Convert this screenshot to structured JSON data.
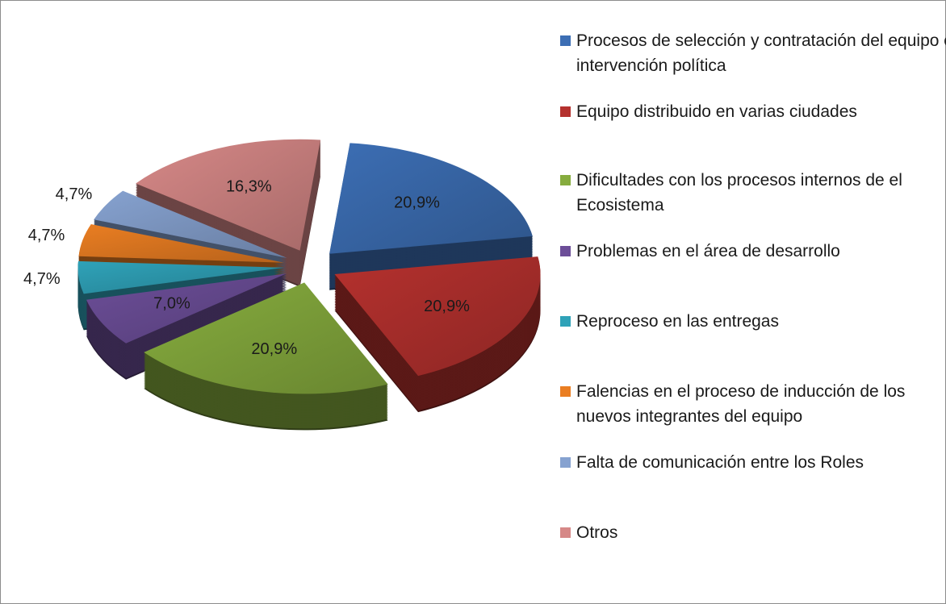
{
  "chart_data": {
    "type": "pie",
    "categories": [
      "Procesos de selección y contratación del equipo e intervención política",
      "Equipo distribuido en varias ciudades",
      "Dificultades con los procesos internos de el Ecosistema",
      "Problemas en el área de desarrollo",
      "Reproceso en las entregas",
      "Falencias en el proceso de inducción de los nuevos integrantes del equipo",
      "Falta de comunicación entre los Roles",
      "Otros"
    ],
    "values": [
      20.9,
      20.9,
      20.9,
      7.0,
      4.7,
      4.7,
      4.7,
      16.3
    ],
    "value_labels": [
      "20,9%",
      "20,9%",
      "20,9%",
      "7,0%",
      "4,7%",
      "4,7%",
      "4,7%",
      "16,3%"
    ],
    "colors": [
      "#3c6eb4",
      "#b5312e",
      "#86ac3e",
      "#6c4e98",
      "#2fa2b8",
      "#ea7e22",
      "#86a2d0",
      "#d68887"
    ],
    "legend": "right"
  }
}
